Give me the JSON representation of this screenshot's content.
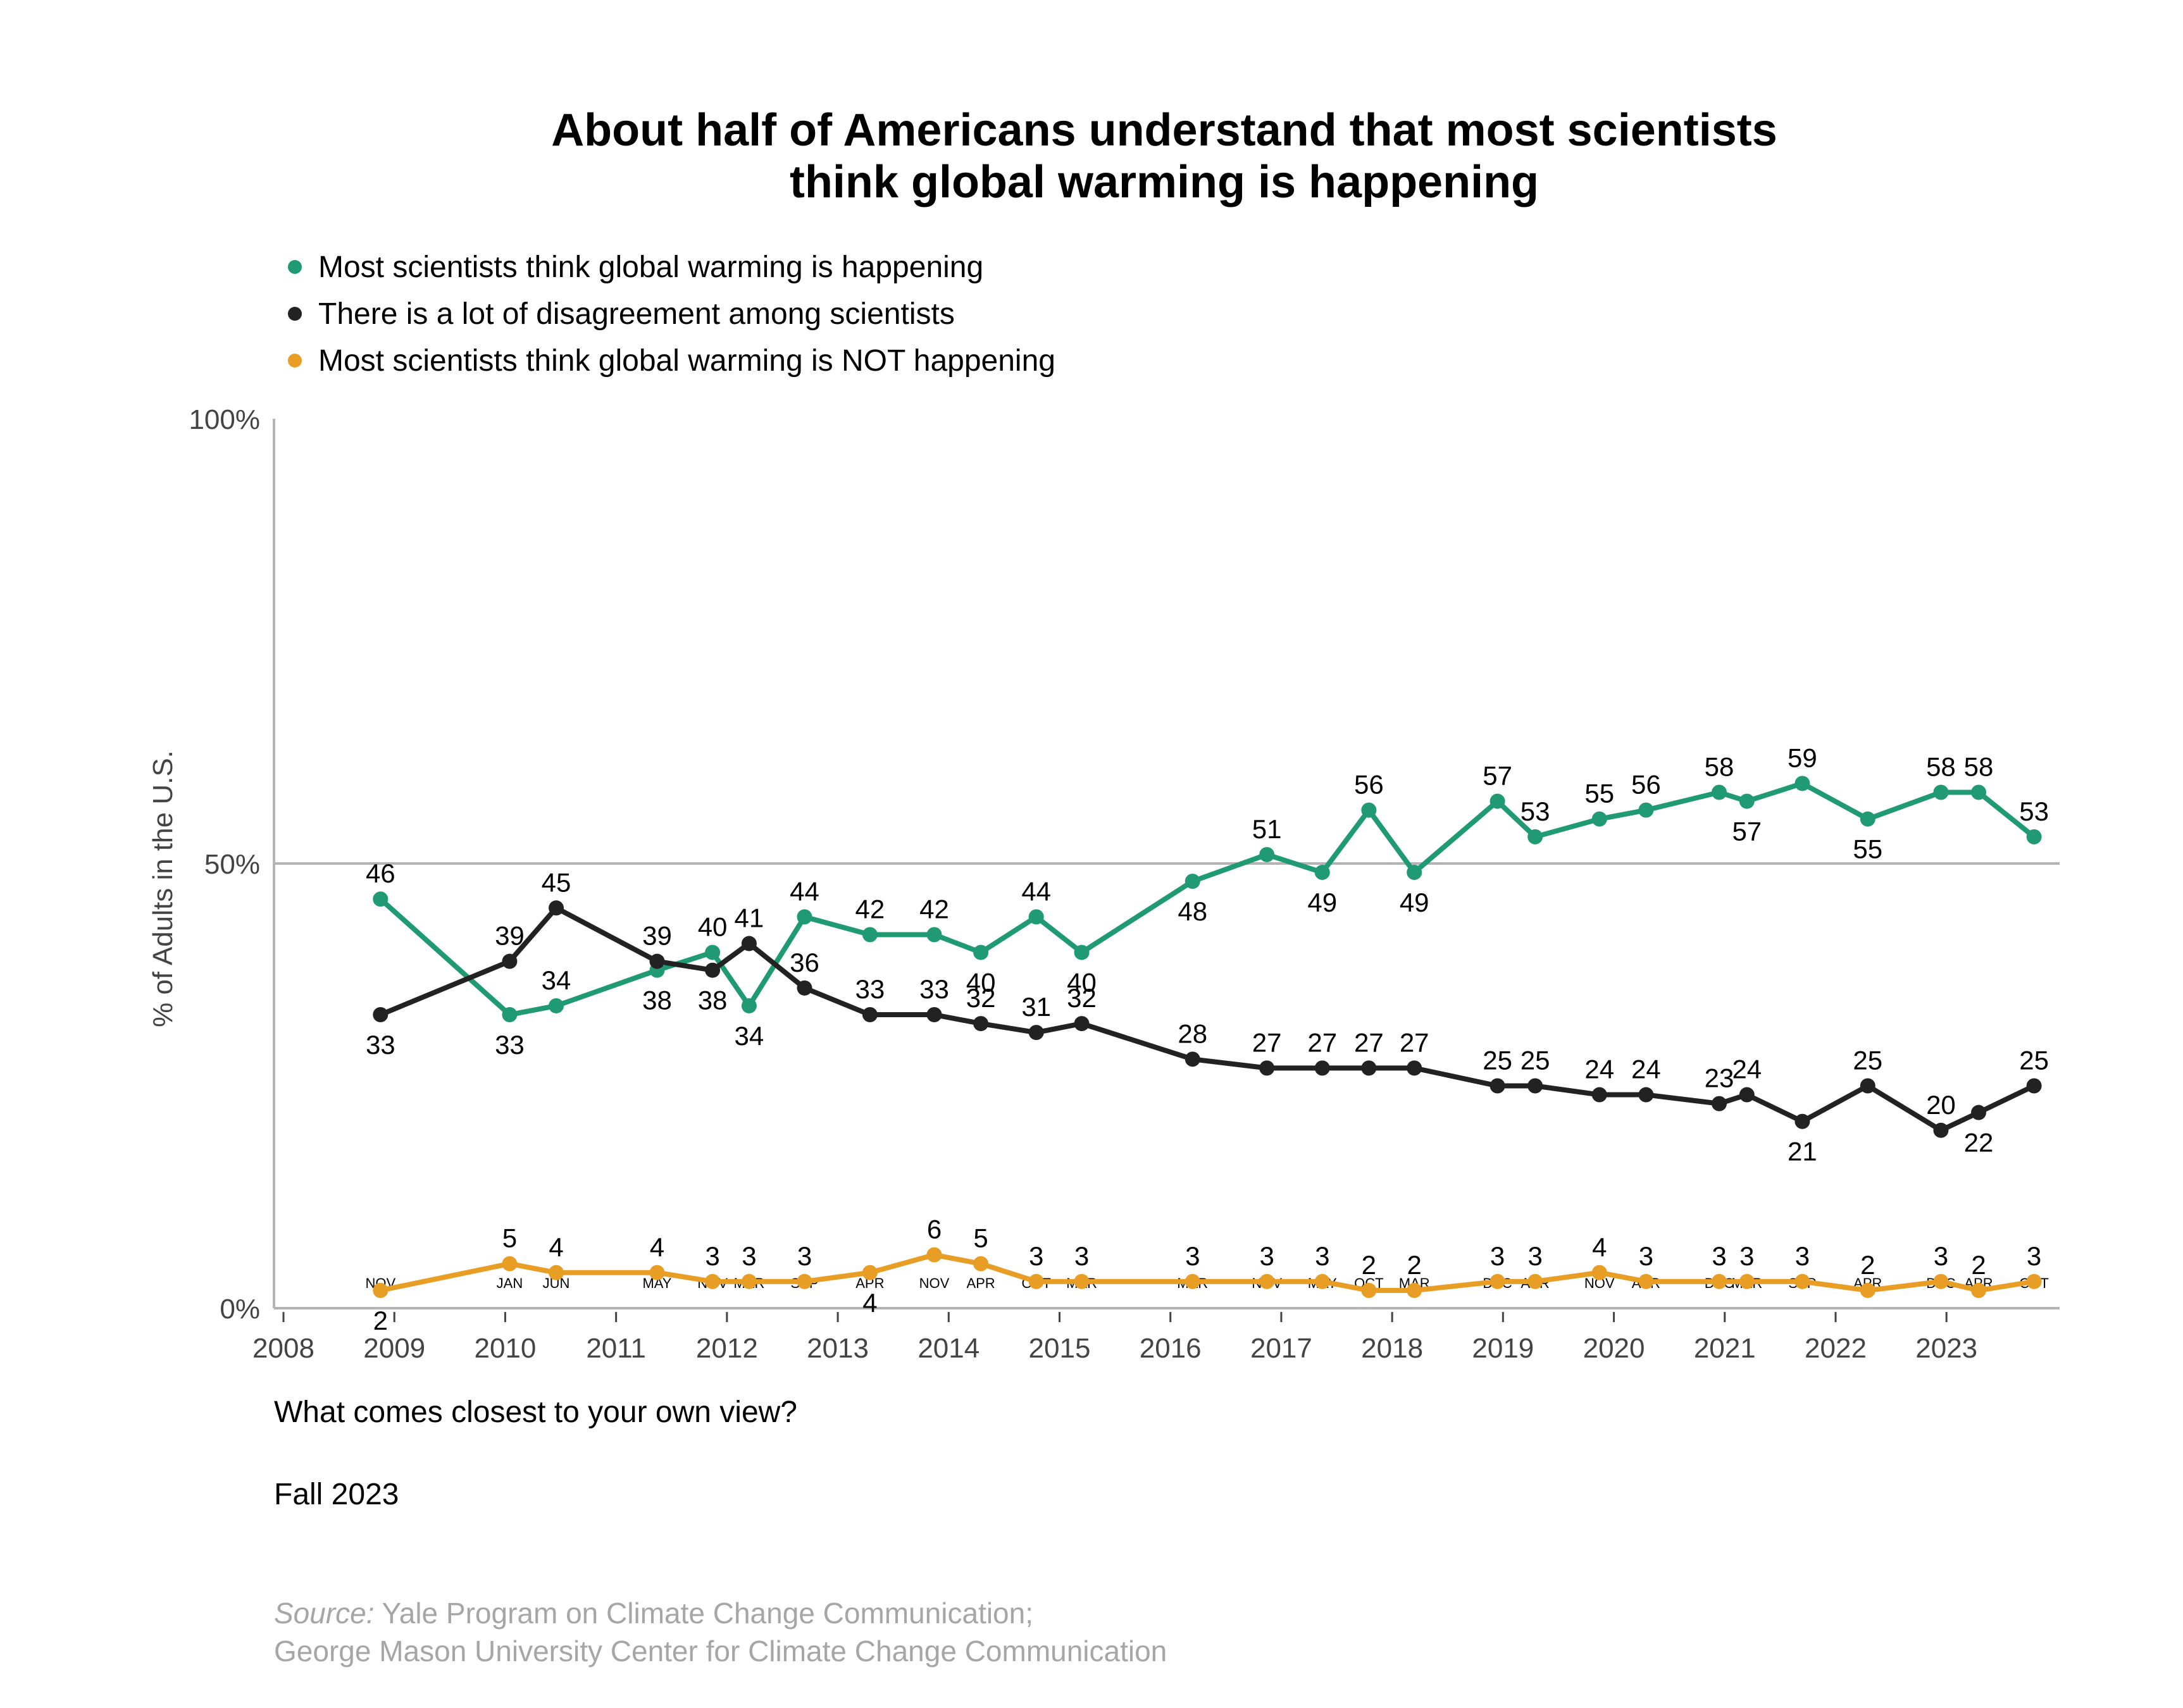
{
  "chart_data": {
    "type": "line",
    "title": "About half of Americans understand that most scientists think global warming is happening",
    "title_lines": [
      "About half of Americans understand that most scientists",
      "think global warming is happening"
    ],
    "xlabel": "",
    "ylabel": "% of Adults in the U.S.",
    "ylim": [
      0,
      100
    ],
    "y_ticks": [
      "0%",
      "50%",
      "100%"
    ],
    "y_tick_values": [
      0,
      50,
      100
    ],
    "x_range": [
      2008,
      2024
    ],
    "x_year_ticks": [
      "2008",
      "2009",
      "2010",
      "2011",
      "2012",
      "2013",
      "2014",
      "2015",
      "2016",
      "2017",
      "2018",
      "2019",
      "2020",
      "2021",
      "2022",
      "2023"
    ],
    "x_months": [
      "NOV",
      "JAN",
      "JUN",
      "MAY",
      "NOV",
      "MAR",
      "SEP",
      "APR",
      "NOV",
      "APR",
      "OCT",
      "MAR",
      "MAR",
      "NOV",
      "MAY",
      "OCT",
      "MAR",
      "DEC",
      "APR",
      "NOV",
      "APR",
      "DEC",
      "MAR",
      "SEP",
      "APR",
      "DEC",
      "APR",
      "OCT"
    ],
    "x": [
      2008.875,
      2010.04,
      2010.46,
      2011.37,
      2011.87,
      2012.2,
      2012.7,
      2013.29,
      2013.87,
      2014.29,
      2014.79,
      2015.2,
      2016.2,
      2016.87,
      2017.37,
      2017.79,
      2018.2,
      2018.95,
      2019.29,
      2019.87,
      2020.29,
      2020.95,
      2021.2,
      2021.7,
      2022.29,
      2022.95,
      2023.29,
      2023.79
    ],
    "legend_position": "top-left",
    "grid": "horizontal line at 50%",
    "series": [
      {
        "name": "Most scientists think global warming is happening",
        "color": "#1f9a72",
        "values": [
          46,
          33,
          34,
          38,
          40,
          34,
          44,
          42,
          42,
          40,
          44,
          40,
          48,
          51,
          49,
          56,
          49,
          57,
          53,
          55,
          56,
          58,
          57,
          59,
          55,
          58,
          58,
          53
        ]
      },
      {
        "name": "There is a lot of disagreement among scientists",
        "color": "#222222",
        "values": [
          33,
          39,
          45,
          39,
          38,
          41,
          36,
          33,
          33,
          32,
          31,
          32,
          28,
          27,
          27,
          27,
          27,
          25,
          25,
          24,
          24,
          23,
          24,
          21,
          25,
          20,
          22,
          25
        ]
      },
      {
        "name": "Most scientists think global warming is NOT happening",
        "color": "#e89d24",
        "values": [
          2,
          5,
          4,
          4,
          3,
          3,
          3,
          4,
          6,
          5,
          3,
          3,
          3,
          3,
          3,
          2,
          2,
          3,
          3,
          4,
          3,
          3,
          3,
          3,
          2,
          3,
          2,
          3
        ]
      }
    ]
  },
  "footer": {
    "question": "What comes closest to your own view?",
    "date": "Fall 2023",
    "source_label": "Source:",
    "source_line1": "Yale Program on Climate Change Communication;",
    "source_line2": "George Mason University Center for Climate Change Communication"
  }
}
